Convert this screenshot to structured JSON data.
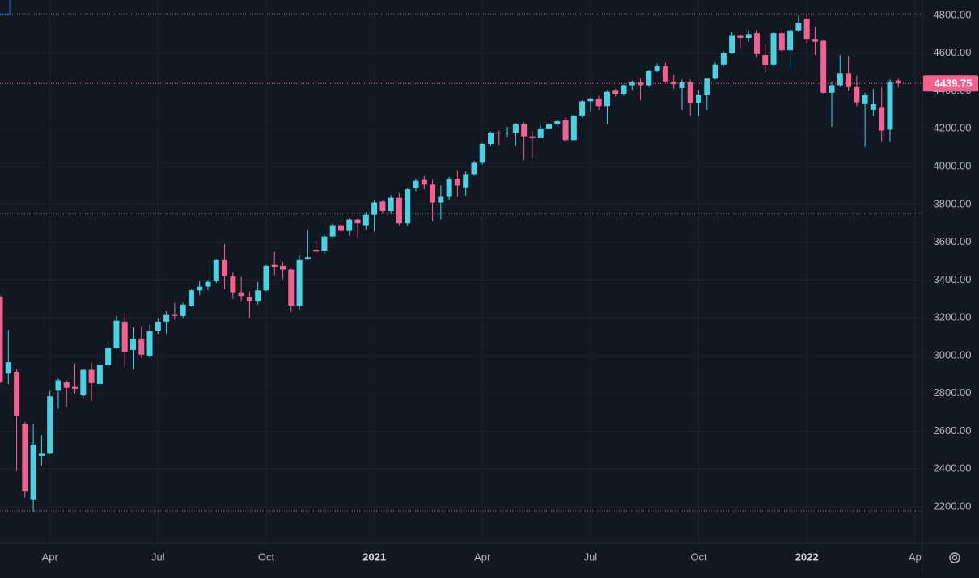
{
  "chart_data": {
    "type": "candlestick",
    "categories": [
      null,
      null,
      null,
      null,
      null,
      null,
      "Apr",
      null,
      null,
      null,
      null,
      null,
      null,
      null,
      null,
      null,
      null,
      null,
      null,
      "Jul",
      null,
      null,
      null,
      null,
      null,
      null,
      null,
      null,
      null,
      null,
      null,
      null,
      "Oct",
      null,
      null,
      null,
      null,
      null,
      null,
      null,
      null,
      null,
      null,
      null,
      null,
      "2021",
      null,
      null,
      null,
      null,
      null,
      null,
      null,
      null,
      null,
      null,
      null,
      null,
      "Apr",
      null,
      null,
      null,
      null,
      null,
      null,
      null,
      null,
      null,
      null,
      null,
      null,
      "Jul",
      null,
      null,
      null,
      null,
      null,
      null,
      null,
      null,
      null,
      null,
      null,
      null,
      "Oct",
      null,
      null,
      null,
      null,
      null,
      null,
      null,
      null,
      null,
      null,
      null,
      null,
      "2022",
      null,
      null,
      null,
      null,
      null,
      null,
      null,
      null,
      null,
      null,
      null,
      null,
      "Ap"
    ],
    "open": [
      3310,
      2905,
      2915,
      2640,
      2240,
      2470,
      2485,
      2815,
      2860,
      2835,
      2790,
      2925,
      2850,
      2950,
      3040,
      3180,
      3030,
      3090,
      3000,
      3130,
      3180,
      3215,
      3210,
      3265,
      3345,
      3365,
      3395,
      3505,
      3420,
      3335,
      3310,
      3290,
      3345,
      3480,
      3475,
      3455,
      3265,
      3510,
      3560,
      3555,
      3630,
      3690,
      3660,
      3720,
      3690,
      3745,
      3815,
      3765,
      3835,
      3700,
      3885,
      3930,
      3905,
      3810,
      3840,
      3935,
      3890,
      3960,
      4020,
      4120,
      4180,
      4175,
      4180,
      4225,
      4160,
      4150,
      4200,
      4225,
      4245,
      4140,
      4270,
      4345,
      4360,
      4320,
      4405,
      4385,
      4430,
      4445,
      4430,
      4505,
      4530,
      4450,
      4415,
      4445,
      4335,
      4380,
      4465,
      4540,
      4600,
      4695,
      4680,
      4705,
      4590,
      4540,
      4705,
      4615,
      4720,
      4780,
      4675,
      4665,
      4390,
      4430,
      4495,
      4420,
      4330,
      4300,
      4315,
      4195,
      4455,
      null,
      null
    ],
    "high": [
      3320,
      3135,
      2930,
      2650,
      2640,
      2580,
      2815,
      2880,
      2870,
      2960,
      2930,
      2960,
      2970,
      3070,
      3210,
      3225,
      3150,
      3155,
      3165,
      3200,
      3235,
      3280,
      3280,
      3350,
      3395,
      3400,
      3510,
      3590,
      3440,
      3415,
      3340,
      3390,
      3480,
      3550,
      3495,
      3460,
      3530,
      3665,
      3610,
      3640,
      3700,
      3710,
      3725,
      3725,
      3760,
      3820,
      3820,
      3850,
      3860,
      3890,
      3935,
      3950,
      3930,
      3900,
      3945,
      3980,
      3975,
      4030,
      4125,
      4185,
      4190,
      4210,
      4230,
      4235,
      4185,
      4215,
      4235,
      4250,
      4260,
      4275,
      4350,
      4365,
      4375,
      4405,
      4410,
      4435,
      4455,
      4465,
      4510,
      4545,
      4550,
      4485,
      4460,
      4460,
      4405,
      4470,
      4550,
      4610,
      4710,
      4700,
      4720,
      4720,
      4650,
      4710,
      4735,
      4730,
      4800,
      4810,
      4740,
      4670,
      4450,
      4590,
      4585,
      4480,
      4390,
      4410,
      4420,
      4460,
      4465,
      null,
      null
    ],
    "low": [
      2850,
      2850,
      2390,
      2250,
      2175,
      2420,
      2480,
      2720,
      2730,
      2800,
      2770,
      2760,
      2840,
      2935,
      3035,
      2940,
      2930,
      2990,
      2990,
      3115,
      3115,
      3190,
      3200,
      3260,
      3320,
      3345,
      3385,
      3350,
      3300,
      3290,
      3200,
      3270,
      3340,
      3425,
      3405,
      3230,
      3240,
      3505,
      3530,
      3540,
      3615,
      3620,
      3635,
      3620,
      3665,
      3655,
      3750,
      3750,
      3690,
      3685,
      3870,
      3880,
      3710,
      3720,
      3825,
      3840,
      3845,
      3950,
      4010,
      4110,
      4115,
      4155,
      4110,
      4035,
      4045,
      4150,
      4170,
      4210,
      4130,
      4135,
      4260,
      4290,
      4300,
      4225,
      4370,
      4375,
      4405,
      4350,
      4420,
      4500,
      4445,
      4410,
      4300,
      4270,
      4265,
      4300,
      4460,
      4530,
      4595,
      4625,
      4660,
      4580,
      4500,
      4530,
      4600,
      4520,
      4715,
      4650,
      4590,
      4385,
      4210,
      4420,
      4400,
      4320,
      4105,
      4270,
      4130,
      4130,
      4420,
      null,
      null
    ],
    "close": [
      2860,
      2965,
      2680,
      2285,
      2530,
      2485,
      2785,
      2870,
      2830,
      2825,
      2925,
      2855,
      2950,
      3040,
      3185,
      3020,
      3090,
      3005,
      3130,
      3180,
      3215,
      3210,
      3270,
      3345,
      3365,
      3390,
      3505,
      3420,
      3335,
      3315,
      3290,
      3345,
      3475,
      3470,
      3455,
      3265,
      3505,
      3520,
      3550,
      3630,
      3690,
      3660,
      3720,
      3700,
      3745,
      3810,
      3765,
      3835,
      3700,
      3880,
      3925,
      3905,
      3810,
      3840,
      3935,
      3900,
      3960,
      4020,
      4120,
      4180,
      4175,
      4180,
      4225,
      4160,
      4150,
      4200,
      4225,
      4240,
      4140,
      4270,
      4345,
      4360,
      4320,
      4395,
      4385,
      4430,
      4445,
      4430,
      4505,
      4530,
      4450,
      4435,
      4445,
      4335,
      4380,
      4465,
      4540,
      4600,
      4695,
      4680,
      4700,
      4595,
      4535,
      4705,
      4615,
      4720,
      4760,
      4675,
      4660,
      4390,
      4430,
      4495,
      4420,
      4340,
      4380,
      4330,
      4190,
      4450,
      4439.75,
      null,
      null
    ],
    "up_color": "#4dd0e1",
    "down_color": "#f06292",
    "last_price": 4439.75,
    "levels": [
      4808,
      3752,
      2179
    ],
    "ylim": [
      2008,
      4881
    ],
    "yticks": [
      {
        "value": 2200,
        "label": "2200.00"
      },
      {
        "value": 2400,
        "label": "2400.00"
      },
      {
        "value": 2600,
        "label": "2600.00"
      },
      {
        "value": 2800,
        "label": "2800.00"
      },
      {
        "value": 3000,
        "label": "3000.00"
      },
      {
        "value": 3200,
        "label": "3200.00"
      },
      {
        "value": 3400,
        "label": "3400.00"
      },
      {
        "value": 3600,
        "label": "3600.00"
      },
      {
        "value": 3800,
        "label": "3800.00"
      },
      {
        "value": 4000,
        "label": "4000.00"
      },
      {
        "value": 4200,
        "label": "4200.00"
      },
      {
        "value": 4400,
        "label": "4400.00"
      },
      {
        "value": 4600,
        "label": "4600.00"
      },
      {
        "value": 4800,
        "label": "4800.00"
      }
    ],
    "grid": true
  }
}
